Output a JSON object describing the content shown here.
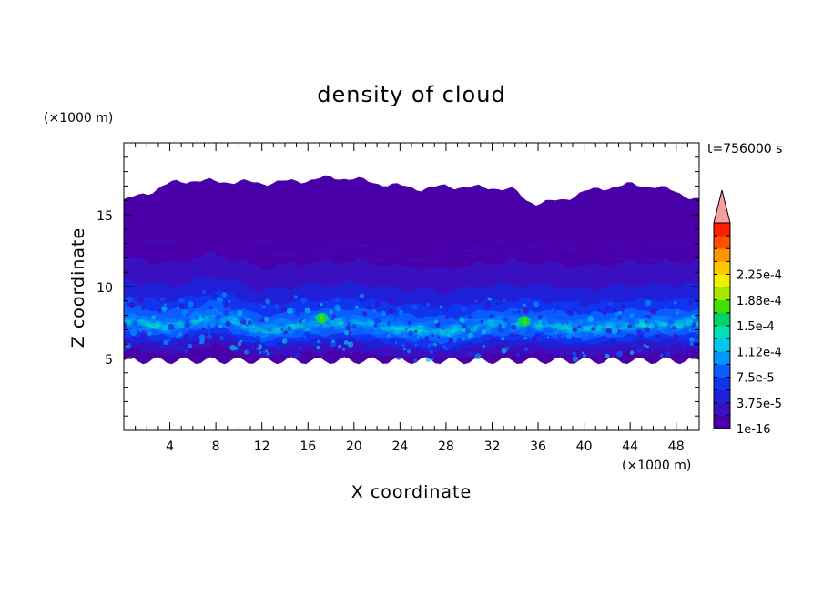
{
  "chart_data": {
    "type": "heatmap",
    "title": "density of cloud",
    "xlabel": "X coordinate",
    "ylabel": "Z coordinate",
    "x_unit": "(×1000 m)",
    "y_unit": "(×1000 m)",
    "time_label": "t=756000 s",
    "xlim": [
      0,
      50
    ],
    "ylim": [
      0,
      20
    ],
    "x_ticks": [
      4,
      8,
      12,
      16,
      20,
      24,
      28,
      32,
      36,
      40,
      44,
      48
    ],
    "y_ticks": [
      5,
      10,
      15
    ],
    "colorbar": {
      "labels": [
        "1e-16",
        "3.75e-5",
        "7.5e-5",
        "1.12e-4",
        "1.5e-4",
        "1.88e-4",
        "2.25e-4"
      ],
      "colors": [
        "#4a00a8",
        "#3a0fc0",
        "#2020d8",
        "#1034f0",
        "#0a5cff",
        "#0096ff",
        "#00c8e6",
        "#00e0b4",
        "#00d26a",
        "#40e000",
        "#a8e800",
        "#f0f000",
        "#ffc800",
        "#ff9600",
        "#ff5000",
        "#ff1e00"
      ],
      "extend_color": "#f4a0a0"
    },
    "layers": [
      {
        "name": "envelope",
        "value": "1e-16",
        "z_bottom": 5.0,
        "z_top_x": [
          0,
          2,
          4,
          6,
          8,
          10,
          12,
          14,
          16,
          18,
          20,
          22,
          24,
          26,
          28,
          30,
          32,
          34,
          35,
          36,
          38,
          40,
          42,
          44,
          46,
          48,
          50
        ],
        "z_top": [
          16.0,
          16.5,
          17.2,
          17.4,
          17.3,
          17.3,
          17.2,
          17.3,
          17.4,
          17.6,
          17.5,
          17.2,
          17.0,
          16.8,
          17.0,
          16.9,
          16.9,
          16.7,
          16.0,
          15.8,
          16.0,
          16.6,
          16.9,
          17.1,
          17.0,
          16.6,
          16.0
        ]
      },
      {
        "name": "dense band",
        "value": "3.75e-5",
        "z_mid_x": [
          0,
          4,
          8,
          12,
          16,
          20,
          24,
          28,
          32,
          36,
          40,
          44,
          48,
          50
        ],
        "z_mid": [
          7.6,
          7.2,
          7.9,
          6.9,
          7.3,
          7.4,
          7.0,
          6.8,
          7.3,
          7.3,
          7.0,
          7.3,
          7.3,
          7.4
        ]
      },
      {
        "name": "peak",
        "value": "1.5e-4",
        "points": [
          [
            17.2,
            7.8
          ],
          [
            34.8,
            7.6
          ]
        ]
      }
    ]
  }
}
